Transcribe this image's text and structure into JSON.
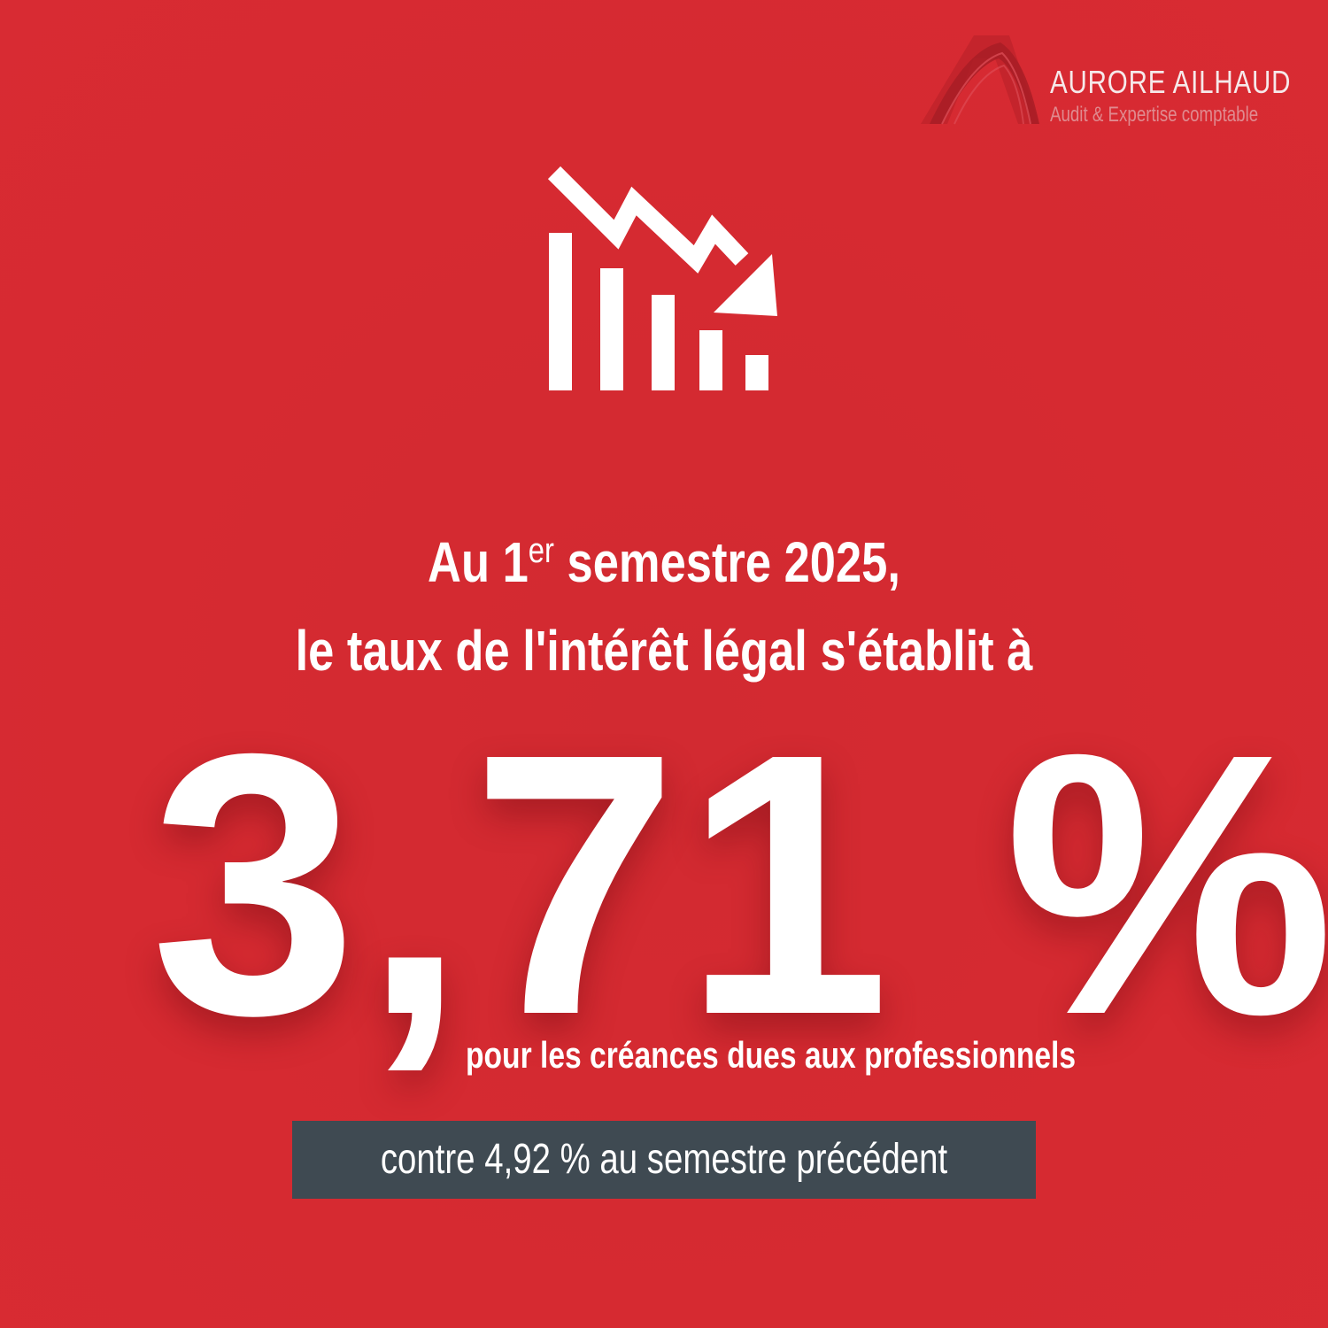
{
  "brand": {
    "name": "AURORE AILHAUD",
    "tagline": "Audit & Expertise comptable",
    "logo_icon": "stylized-a-logo-icon"
  },
  "icon": {
    "name": "downward-trend-chart-icon"
  },
  "headline": {
    "line1_prefix": "Au 1",
    "line1_sup": "er",
    "line1_suffix": " semestre 2025,",
    "line2": "le taux de l'intérêt légal s'établit à"
  },
  "rate": {
    "value": "3,71 %",
    "subtitle": "pour les créances dues aux professionnels"
  },
  "comparison": {
    "text": "contre 4,92 % au semestre précédent"
  },
  "colors": {
    "background": "#d62a31",
    "text": "#ffffff",
    "comparison_box": "#3f4a52",
    "tagline": "#e08a8f"
  }
}
